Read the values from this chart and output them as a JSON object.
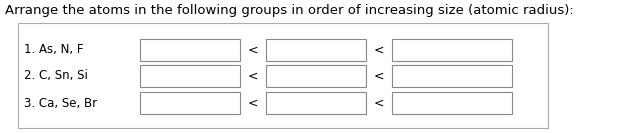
{
  "title": "Arrange the atoms in the following groups in order of increasing size (atomic radius):",
  "rows": [
    {
      "label": "1. As, N, F"
    },
    {
      "label": "2. C, Sn, Si"
    },
    {
      "label": "3. Ca, Se, Br"
    }
  ],
  "background_color": "#ffffff",
  "box_border_color": "#888888",
  "outer_border_color": "#aaaaaa",
  "title_fontsize": 9.5,
  "label_fontsize": 8.5,
  "less_than_fontsize": 9,
  "less_than_symbol": "<"
}
